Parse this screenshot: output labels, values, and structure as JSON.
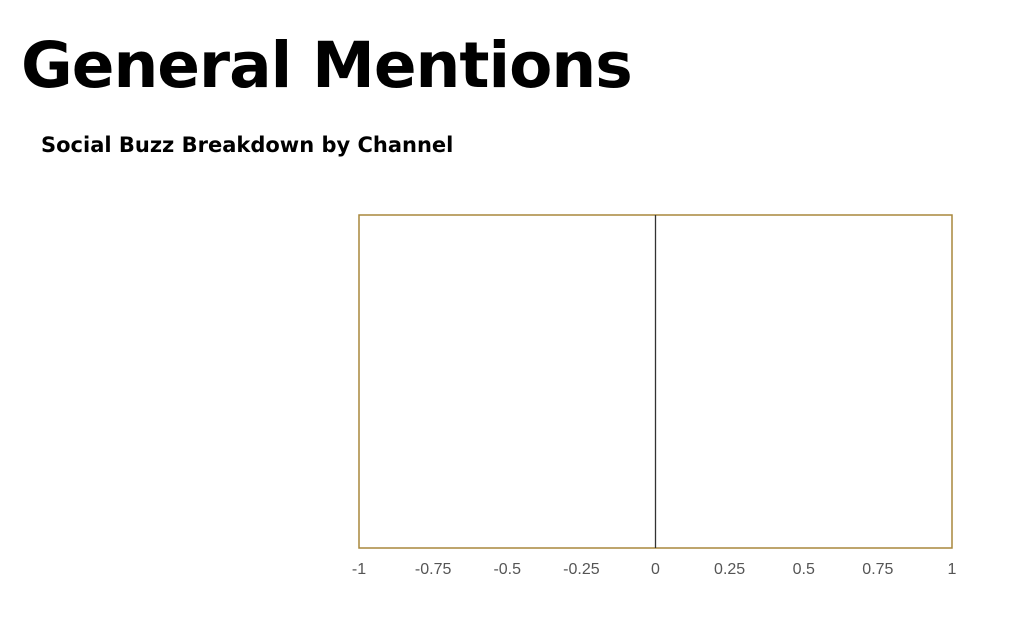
{
  "page": {
    "title": "General Mentions",
    "subtitle": "Social Buzz Breakdown by Channel"
  },
  "chart_data": {
    "type": "bar",
    "orientation": "horizontal",
    "categories": [],
    "series": [],
    "xlim": [
      -1,
      1
    ],
    "x_ticks": [
      {
        "value": -1,
        "label": "-1"
      },
      {
        "value": -0.75,
        "label": "-0.75"
      },
      {
        "value": -0.5,
        "label": "-0.5"
      },
      {
        "value": -0.25,
        "label": "-0.25"
      },
      {
        "value": 0,
        "label": "0"
      },
      {
        "value": 0.25,
        "label": "0.25"
      },
      {
        "value": 0.5,
        "label": "0.5"
      },
      {
        "value": 0.75,
        "label": "0.75"
      },
      {
        "value": 1,
        "label": "1"
      }
    ],
    "grid": false,
    "frame_color": "#a8873c",
    "baseline_color": "#333333",
    "tick_label_color": "#555555"
  }
}
